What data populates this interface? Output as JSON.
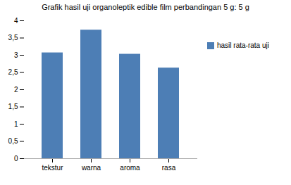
{
  "chart_data": {
    "type": "bar",
    "title": "Grafik hasil uji organoleptik edible film perbandingan 5 g: 5 g",
    "categories": [
      "tekstur",
      "warna",
      "aroma",
      "rasa"
    ],
    "series": [
      {
        "name": "hasil rata-rata uji",
        "color": "#4d7eb5",
        "values": [
          3.07,
          3.73,
          3.03,
          2.63
        ]
      }
    ],
    "ylim": [
      0,
      4
    ],
    "yticks": [
      0,
      {
        "value": 0.5,
        "label": "0,5"
      },
      1,
      {
        "value": 1.5,
        "label": "1,5"
      },
      2,
      {
        "value": 2.5,
        "label": "2,5"
      },
      3,
      {
        "value": 3.5,
        "label": "3,5"
      },
      4
    ],
    "grid": false,
    "legend": "right"
  }
}
